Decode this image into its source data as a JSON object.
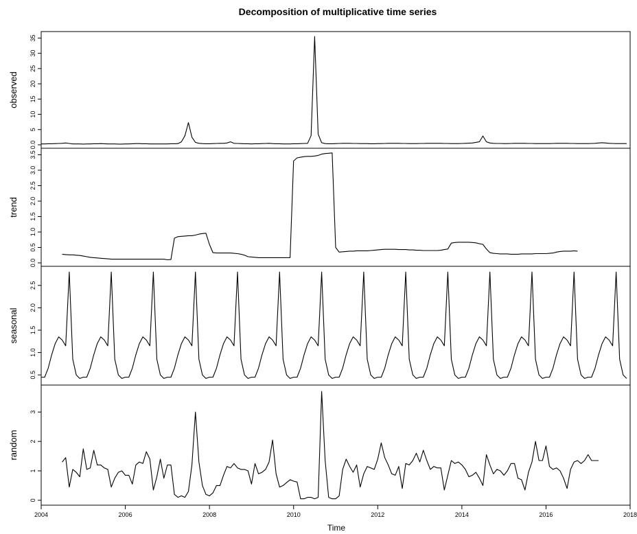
{
  "chart_data": {
    "type": "line",
    "title": "Decomposition of multiplicative time series",
    "xlabel": "Time",
    "x_start": 2004.0,
    "x_step": 0.0833333333,
    "xlim": [
      2004,
      2018
    ],
    "xticks": [
      2004,
      2006,
      2008,
      2010,
      2012,
      2014,
      2016,
      2018
    ],
    "grid": false,
    "panels": [
      {
        "name": "observed",
        "ylabel": "observed",
        "ylim": [
          0,
          36
        ],
        "yticks": [
          0.0,
          5,
          10,
          15,
          20,
          25,
          30,
          35
        ],
        "ytick_labels": [
          "0.0",
          "5",
          "10",
          "15",
          "20",
          "25",
          "30",
          "35"
        ],
        "values": [
          0.3,
          0.3,
          0.35,
          0.35,
          0.4,
          0.45,
          0.5,
          0.6,
          0.45,
          0.3,
          0.3,
          0.3,
          0.25,
          0.3,
          0.3,
          0.35,
          0.35,
          0.4,
          0.35,
          0.3,
          0.3,
          0.3,
          0.25,
          0.25,
          0.3,
          0.3,
          0.35,
          0.4,
          0.4,
          0.35,
          0.35,
          0.3,
          0.3,
          0.3,
          0.3,
          0.3,
          0.3,
          0.35,
          0.35,
          0.4,
          1.0,
          3.0,
          7.3,
          2.5,
          0.8,
          0.5,
          0.4,
          0.35,
          0.35,
          0.4,
          0.45,
          0.5,
          0.5,
          0.6,
          1.0,
          0.5,
          0.45,
          0.4,
          0.35,
          0.35,
          0.3,
          0.35,
          0.35,
          0.4,
          0.45,
          0.5,
          0.4,
          0.35,
          0.35,
          0.3,
          0.3,
          0.3,
          0.35,
          0.35,
          0.4,
          0.45,
          0.5,
          3.0,
          35.5,
          3.5,
          0.7,
          0.4,
          0.35,
          0.35,
          0.4,
          0.45,
          0.5,
          0.5,
          0.5,
          0.45,
          0.45,
          0.4,
          0.4,
          0.4,
          0.35,
          0.35,
          0.4,
          0.4,
          0.45,
          0.5,
          0.5,
          0.5,
          0.5,
          0.45,
          0.45,
          0.4,
          0.4,
          0.4,
          0.45,
          0.45,
          0.5,
          0.5,
          0.5,
          0.5,
          0.5,
          0.45,
          0.45,
          0.4,
          0.4,
          0.4,
          0.45,
          0.5,
          0.55,
          0.6,
          0.8,
          1.0,
          2.9,
          1.0,
          0.6,
          0.5,
          0.45,
          0.45,
          0.4,
          0.4,
          0.45,
          0.5,
          0.5,
          0.5,
          0.5,
          0.45,
          0.45,
          0.4,
          0.4,
          0.4,
          0.4,
          0.4,
          0.45,
          0.5,
          0.5,
          0.5,
          0.5,
          0.45,
          0.45,
          0.4,
          0.4,
          0.4,
          0.4,
          0.45,
          0.5,
          0.6,
          0.7,
          0.6,
          0.5,
          0.45,
          0.4,
          0.4,
          0.4,
          0.4
        ]
      },
      {
        "name": "trend",
        "ylabel": "trend",
        "ylim": [
          0,
          3.6
        ],
        "yticks": [
          0.0,
          0.5,
          1.0,
          1.5,
          2.0,
          2.5,
          3.0,
          3.5
        ],
        "ytick_labels": [
          "0.0",
          "0.5",
          "1.0",
          "1.5",
          "2.0",
          "2.5",
          "3.0",
          "3.5"
        ],
        "start_index": 6,
        "values": [
          0.28,
          0.27,
          0.26,
          0.26,
          0.25,
          0.24,
          0.22,
          0.2,
          0.18,
          0.17,
          0.16,
          0.15,
          0.14,
          0.13,
          0.12,
          0.12,
          0.12,
          0.12,
          0.12,
          0.12,
          0.12,
          0.12,
          0.12,
          0.12,
          0.12,
          0.12,
          0.12,
          0.12,
          0.12,
          0.12,
          0.1,
          0.11,
          0.8,
          0.85,
          0.86,
          0.87,
          0.88,
          0.88,
          0.9,
          0.93,
          0.95,
          0.96,
          0.6,
          0.33,
          0.32,
          0.32,
          0.32,
          0.32,
          0.32,
          0.31,
          0.3,
          0.28,
          0.25,
          0.2,
          0.19,
          0.18,
          0.17,
          0.17,
          0.17,
          0.17,
          0.17,
          0.17,
          0.17,
          0.17,
          0.17,
          0.17,
          3.3,
          3.4,
          3.42,
          3.44,
          3.45,
          3.45,
          3.46,
          3.48,
          3.52,
          3.54,
          3.55,
          3.56,
          0.5,
          0.35,
          0.36,
          0.37,
          0.38,
          0.38,
          0.39,
          0.39,
          0.39,
          0.39,
          0.4,
          0.41,
          0.42,
          0.43,
          0.44,
          0.44,
          0.44,
          0.44,
          0.43,
          0.43,
          0.43,
          0.42,
          0.42,
          0.41,
          0.41,
          0.4,
          0.4,
          0.4,
          0.4,
          0.4,
          0.41,
          0.43,
          0.45,
          0.64,
          0.66,
          0.67,
          0.67,
          0.67,
          0.67,
          0.66,
          0.65,
          0.62,
          0.6,
          0.45,
          0.33,
          0.31,
          0.3,
          0.29,
          0.29,
          0.29,
          0.28,
          0.28,
          0.28,
          0.29,
          0.29,
          0.29,
          0.29,
          0.3,
          0.3,
          0.3,
          0.3,
          0.31,
          0.32,
          0.35,
          0.37,
          0.38,
          0.38,
          0.38,
          0.39,
          0.38
        ]
      },
      {
        "name": "seasonal",
        "ylabel": "seasonal",
        "ylim": [
          0.35,
          2.85
        ],
        "yticks": [
          0.5,
          1.0,
          1.5,
          2.0,
          2.5
        ],
        "ytick_labels": [
          "0.5",
          "1.0",
          "1.5",
          "2.0",
          "2.5"
        ],
        "pattern": [
          0.45,
          0.45,
          0.65,
          0.95,
          1.2,
          1.35,
          1.28,
          1.15,
          2.8,
          0.85,
          0.5,
          0.42
        ],
        "values": []
      },
      {
        "name": "random",
        "ylabel": "random",
        "ylim": [
          -0.05,
          3.8
        ],
        "yticks": [
          0,
          1,
          2,
          3
        ],
        "ytick_labels": [
          "0",
          "1",
          "2",
          "3"
        ],
        "start_index": 6,
        "values": [
          1.3,
          1.45,
          0.45,
          1.05,
          0.95,
          0.8,
          1.75,
          1.05,
          1.1,
          1.7,
          1.2,
          1.2,
          1.1,
          1.05,
          0.45,
          0.75,
          0.95,
          1.0,
          0.85,
          0.85,
          0.55,
          1.2,
          1.3,
          1.25,
          1.65,
          1.4,
          0.35,
          0.8,
          1.4,
          0.75,
          1.2,
          1.2,
          0.2,
          0.1,
          0.15,
          0.1,
          0.3,
          1.2,
          3.0,
          1.3,
          0.5,
          0.2,
          0.15,
          0.25,
          0.5,
          0.5,
          0.85,
          1.15,
          1.1,
          1.25,
          1.1,
          1.05,
          1.05,
          1.0,
          0.55,
          1.25,
          0.9,
          0.95,
          1.05,
          1.3,
          2.05,
          0.9,
          0.45,
          0.5,
          0.6,
          0.7,
          0.65,
          0.62,
          0.05,
          0.05,
          0.1,
          0.1,
          0.05,
          0.1,
          3.7,
          1.35,
          0.1,
          0.05,
          0.05,
          0.15,
          1.05,
          1.4,
          1.15,
          0.95,
          1.2,
          0.45,
          0.9,
          1.15,
          1.1,
          1.05,
          1.4,
          1.95,
          1.45,
          1.2,
          0.9,
          0.85,
          1.15,
          0.4,
          1.25,
          1.2,
          1.35,
          1.6,
          1.3,
          1.7,
          1.35,
          1.05,
          1.15,
          1.1,
          1.1,
          0.35,
          0.85,
          1.35,
          1.25,
          1.3,
          1.2,
          1.05,
          0.8,
          0.85,
          0.95,
          0.75,
          0.5,
          1.55,
          1.2,
          0.9,
          1.05,
          1.0,
          0.85,
          1.0,
          1.25,
          1.25,
          0.75,
          0.7,
          0.35,
          0.95,
          1.3,
          2.0,
          1.35,
          1.35,
          1.85,
          1.15,
          1.05,
          1.1,
          1.0,
          0.75,
          0.4,
          1.05,
          1.3,
          1.35,
          1.25,
          1.35,
          1.55,
          1.35,
          1.35,
          1.35
        ]
      }
    ]
  }
}
